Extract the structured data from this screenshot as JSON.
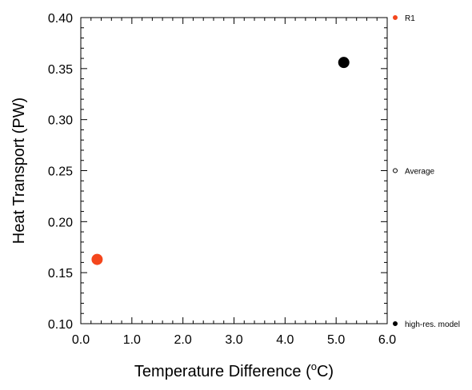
{
  "chart_data": {
    "type": "scatter",
    "xlabel": "Temperature Difference (°C)",
    "ylabel": "Heat Transport (PW)",
    "xlim": [
      0.0,
      6.0
    ],
    "ylim": [
      0.1,
      0.4
    ],
    "x_ticks": [
      0.0,
      1.0,
      2.0,
      3.0,
      4.0,
      5.0,
      6.0
    ],
    "x_tick_labels": [
      "0.0",
      "1.0",
      "2.0",
      "3.0",
      "4.0",
      "5.0",
      "6.0"
    ],
    "y_ticks": [
      0.1,
      0.15,
      0.2,
      0.25,
      0.3,
      0.35,
      0.4
    ],
    "y_tick_labels": [
      "0.10",
      "0.15",
      "0.20",
      "0.25",
      "0.30",
      "0.35",
      "0.40"
    ],
    "grid": false,
    "legend_position": "right",
    "series": [
      {
        "name": "R1",
        "color": "#f4461c",
        "marker": "filled-circle",
        "points": [
          {
            "x": 0.32,
            "y": 0.163
          }
        ]
      },
      {
        "name": "Average",
        "color": "#000000",
        "marker": "open-circle",
        "points": []
      },
      {
        "name": "high-res. model",
        "color": "#000000",
        "marker": "filled-circle",
        "points": [
          {
            "x": 5.15,
            "y": 0.356
          }
        ]
      }
    ]
  }
}
